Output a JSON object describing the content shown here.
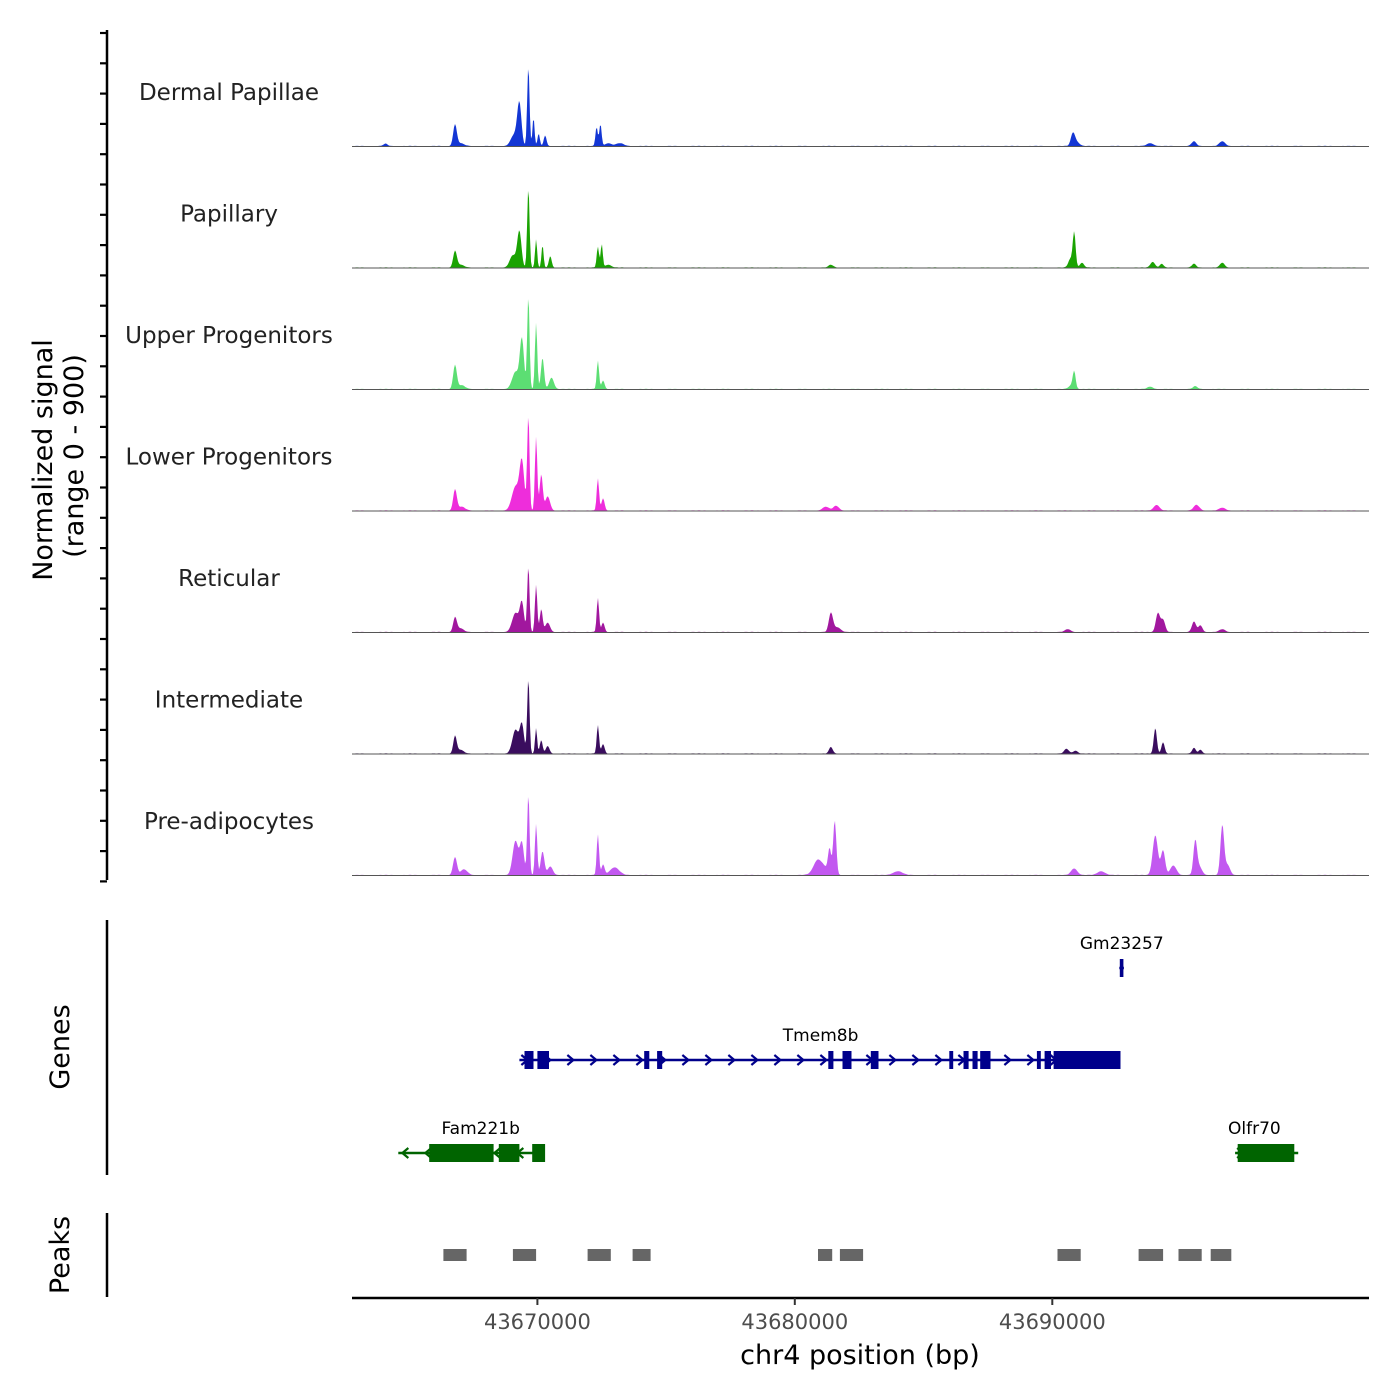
{
  "chart_data": {
    "type": "area",
    "title": "",
    "chromosome": "chr4",
    "xlabel": "chr4 position (bp)",
    "ylabel_line1": "Normalized signal",
    "ylabel_line2": "(range 0 - 900)",
    "xlim": [
      43662800,
      43702300
    ],
    "ylim": [
      0,
      900
    ],
    "x_ticks": [
      43670000,
      43680000,
      43690000
    ],
    "x_tick_labels": [
      "43670000",
      "43680000",
      "43690000"
    ],
    "tracks": [
      {
        "name": "Dermal Papillae",
        "color": "#1336d4",
        "peaks": [
          [
            43666800,
            220,
            70
          ],
          [
            43667000,
            30,
            150
          ],
          [
            43669100,
            120,
            130
          ],
          [
            43669300,
            440,
            80
          ],
          [
            43669650,
            850,
            45
          ],
          [
            43669850,
            300,
            40
          ],
          [
            43670050,
            130,
            45
          ],
          [
            43670300,
            110,
            55
          ],
          [
            43672300,
            200,
            45
          ],
          [
            43672450,
            230,
            45
          ],
          [
            43672750,
            30,
            120
          ],
          [
            43664100,
            25,
            80
          ],
          [
            43673200,
            30,
            150
          ],
          [
            43690800,
            130,
            80
          ],
          [
            43690950,
            40,
            110
          ],
          [
            43693800,
            30,
            130
          ],
          [
            43695500,
            50,
            90
          ],
          [
            43696600,
            50,
            110
          ]
        ]
      },
      {
        "name": "Papillary",
        "color": "#1aa302",
        "peaks": [
          [
            43666800,
            170,
            70
          ],
          [
            43667000,
            30,
            140
          ],
          [
            43669050,
            130,
            120
          ],
          [
            43669300,
            380,
            80
          ],
          [
            43669650,
            850,
            45
          ],
          [
            43669950,
            300,
            40
          ],
          [
            43670200,
            240,
            40
          ],
          [
            43670500,
            120,
            55
          ],
          [
            43672350,
            220,
            45
          ],
          [
            43672500,
            250,
            40
          ],
          [
            43672750,
            30,
            120
          ],
          [
            43681400,
            30,
            90
          ],
          [
            43690700,
            90,
            80
          ],
          [
            43690850,
            370,
            55
          ],
          [
            43691150,
            50,
            80
          ],
          [
            43693900,
            60,
            90
          ],
          [
            43694250,
            40,
            70
          ],
          [
            43695500,
            40,
            80
          ],
          [
            43696600,
            50,
            90
          ]
        ]
      },
      {
        "name": "Upper Progenitors",
        "color": "#5cde73",
        "peaks": [
          [
            43666800,
            250,
            70
          ],
          [
            43667050,
            40,
            140
          ],
          [
            43669150,
            180,
            130
          ],
          [
            43669400,
            520,
            80
          ],
          [
            43669650,
            990,
            45
          ],
          [
            43669950,
            700,
            45
          ],
          [
            43670200,
            330,
            60
          ],
          [
            43670550,
            120,
            90
          ],
          [
            43672350,
            300,
            45
          ],
          [
            43672550,
            90,
            60
          ],
          [
            43690850,
            170,
            55
          ],
          [
            43690750,
            40,
            110
          ],
          [
            43693800,
            25,
            110
          ],
          [
            43695550,
            30,
            90
          ]
        ]
      },
      {
        "name": "Lower Progenitors",
        "color": "#ee2ddb",
        "peaks": [
          [
            43666800,
            220,
            70
          ],
          [
            43667050,
            40,
            140
          ],
          [
            43669150,
            250,
            140
          ],
          [
            43669400,
            500,
            90
          ],
          [
            43669650,
            1010,
            45
          ],
          [
            43669950,
            780,
            45
          ],
          [
            43670150,
            380,
            60
          ],
          [
            43670400,
            150,
            90
          ],
          [
            43672350,
            340,
            45
          ],
          [
            43672550,
            130,
            60
          ],
          [
            43681200,
            40,
            120
          ],
          [
            43681600,
            50,
            110
          ],
          [
            43694050,
            60,
            110
          ],
          [
            43695600,
            60,
            110
          ],
          [
            43696600,
            30,
            120
          ]
        ]
      },
      {
        "name": "Reticular",
        "color": "#a1179e",
        "peaks": [
          [
            43666800,
            150,
            70
          ],
          [
            43667000,
            40,
            130
          ],
          [
            43669150,
            200,
            130
          ],
          [
            43669400,
            300,
            80
          ],
          [
            43669650,
            700,
            45
          ],
          [
            43669950,
            500,
            45
          ],
          [
            43670150,
            240,
            55
          ],
          [
            43670400,
            100,
            90
          ],
          [
            43672350,
            360,
            45
          ],
          [
            43672550,
            100,
            60
          ],
          [
            43681400,
            200,
            80
          ],
          [
            43681650,
            50,
            130
          ],
          [
            43694100,
            200,
            80
          ],
          [
            43694300,
            130,
            80
          ],
          [
            43695500,
            110,
            80
          ],
          [
            43695750,
            70,
            80
          ],
          [
            43690600,
            30,
            110
          ],
          [
            43696600,
            30,
            110
          ]
        ]
      },
      {
        "name": "Intermediate",
        "color": "#3a0d5e",
        "peaks": [
          [
            43666800,
            180,
            65
          ],
          [
            43667000,
            40,
            130
          ],
          [
            43669150,
            250,
            120
          ],
          [
            43669400,
            300,
            80
          ],
          [
            43669650,
            800,
            45
          ],
          [
            43669950,
            270,
            40
          ],
          [
            43670150,
            140,
            55
          ],
          [
            43670400,
            80,
            70
          ],
          [
            43672350,
            300,
            45
          ],
          [
            43672550,
            100,
            60
          ],
          [
            43681400,
            70,
            70
          ],
          [
            43690550,
            50,
            90
          ],
          [
            43690900,
            30,
            90
          ],
          [
            43694000,
            270,
            60
          ],
          [
            43694300,
            120,
            60
          ],
          [
            43695500,
            60,
            70
          ],
          [
            43695750,
            40,
            70
          ]
        ]
      },
      {
        "name": "Pre-adipocytes",
        "color": "#c258f0",
        "peaks": [
          [
            43666800,
            190,
            75
          ],
          [
            43667150,
            60,
            130
          ],
          [
            43669150,
            360,
            110
          ],
          [
            43669400,
            330,
            80
          ],
          [
            43669650,
            860,
            45
          ],
          [
            43669950,
            540,
            45
          ],
          [
            43670200,
            250,
            70
          ],
          [
            43670500,
            90,
            100
          ],
          [
            43672350,
            430,
            45
          ],
          [
            43672550,
            110,
            60
          ],
          [
            43673000,
            80,
            180
          ],
          [
            43681000,
            120,
            230
          ],
          [
            43681350,
            250,
            60
          ],
          [
            43681550,
            570,
            60
          ],
          [
            43680850,
            60,
            130
          ],
          [
            43684000,
            40,
            180
          ],
          [
            43690850,
            70,
            120
          ],
          [
            43694000,
            420,
            100
          ],
          [
            43694300,
            260,
            80
          ],
          [
            43694700,
            100,
            120
          ],
          [
            43695550,
            340,
            70
          ],
          [
            43695700,
            90,
            110
          ],
          [
            43696600,
            520,
            70
          ],
          [
            43696800,
            110,
            100
          ],
          [
            43691900,
            40,
            150
          ]
        ]
      }
    ],
    "genes_track_label": "Genes",
    "genes": [
      {
        "name": "Fam221b",
        "strand": "-",
        "color": "#006400",
        "row": 3,
        "start": 43664600,
        "end": 43670150,
        "exons": [
          [
            43665800,
            43668300
          ],
          [
            43668500,
            43669300
          ],
          [
            43669800,
            43670300
          ]
        ],
        "label_pos": 43667800
      },
      {
        "name": "Tmem8b",
        "strand": "+",
        "color": "#00008b",
        "row": 2,
        "start": 43669300,
        "end": 43692600,
        "exons": [
          [
            43669500,
            43669850
          ],
          [
            43670000,
            43670450
          ],
          [
            43674150,
            43674350
          ],
          [
            43674650,
            43674850
          ],
          [
            43681300,
            43681500
          ],
          [
            43681850,
            43682200
          ],
          [
            43682950,
            43683250
          ],
          [
            43686000,
            43686150
          ],
          [
            43686550,
            43686750
          ],
          [
            43686900,
            43687100
          ],
          [
            43687200,
            43687600
          ],
          [
            43689400,
            43689550
          ],
          [
            43689700,
            43689950
          ],
          [
            43690050,
            43692650
          ]
        ],
        "label_pos": 43681000
      },
      {
        "name": "Gm23257",
        "strand": "+",
        "color": "#00008b",
        "row": 1,
        "start": 43692600,
        "end": 43692780,
        "exons": [
          [
            43692620,
            43692760
          ]
        ],
        "label_pos": 43692700
      },
      {
        "name": "Olfr70",
        "strand": "+",
        "color": "#006400",
        "row": 3,
        "start": 43697100,
        "end": 43699550,
        "exons": [
          [
            43697200,
            43699400
          ]
        ],
        "label_pos": 43697850
      }
    ],
    "peaks_track_label": "Peaks",
    "peak_regions": [
      [
        43666350,
        43667250
      ],
      [
        43669050,
        43669950
      ],
      [
        43671950,
        43672850
      ],
      [
        43673700,
        43674400
      ],
      [
        43680900,
        43681450
      ],
      [
        43681750,
        43682650
      ],
      [
        43690200,
        43691100
      ],
      [
        43693350,
        43694300
      ],
      [
        43694900,
        43695800
      ],
      [
        43696150,
        43696950
      ]
    ]
  }
}
